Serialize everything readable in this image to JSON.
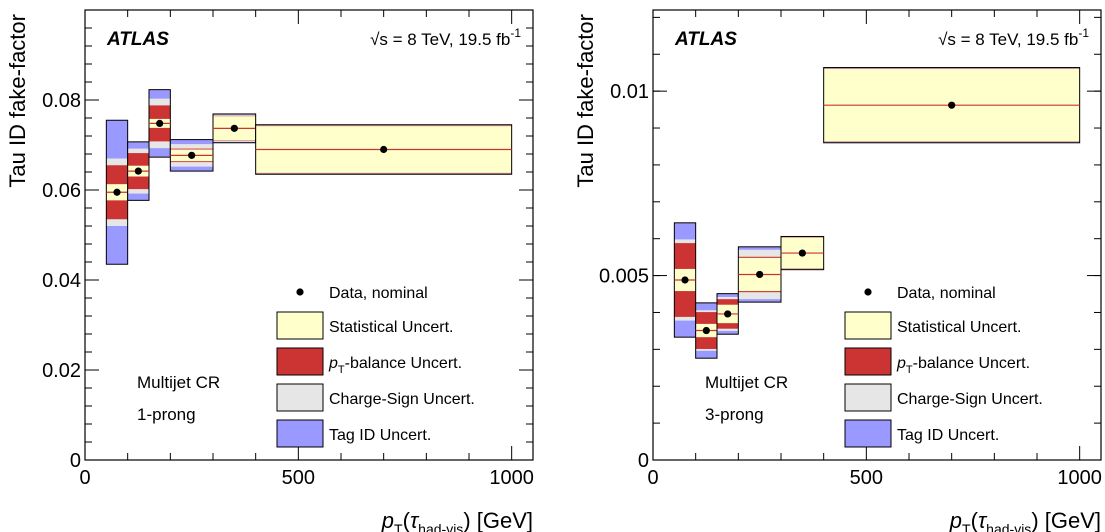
{
  "chart_data": [
    {
      "type": "bar",
      "panel": "left",
      "experiment": "ATLAS",
      "energy_label": "√s = 8 TeV, 19.5 fb",
      "lumi_exponent": "-1",
      "ylabel": "Tau ID fake-factor",
      "xlabel": {
        "p": "p",
        "sub": "T",
        "paren_open": "(",
        "tau": "τ",
        "tau_sub": "had-vis",
        "rest": ") [GeV]"
      },
      "xlim": [
        0,
        1050
      ],
      "ylim": [
        0,
        0.1
      ],
      "xticks": [
        0,
        500,
        1000
      ],
      "xtick_labels": [
        "0",
        "500",
        "1000"
      ],
      "yticks": [
        0,
        0.02,
        0.04,
        0.06,
        0.08
      ],
      "ytick_labels": [
        "0",
        "0.02",
        "0.04",
        "0.06",
        "0.08"
      ],
      "region_lines": [
        "Multijet CR",
        "1-prong"
      ],
      "bins": [
        {
          "xlo": 50,
          "xhi": 100,
          "value": 0.0595,
          "stat": 0.0018,
          "pt_bal": 0.006,
          "charge": 0.0075,
          "tag": 0.016
        },
        {
          "xlo": 100,
          "xhi": 150,
          "value": 0.0642,
          "stat": 0.0012,
          "pt_bal": 0.004,
          "charge": 0.005,
          "tag": 0.0065
        },
        {
          "xlo": 150,
          "xhi": 200,
          "value": 0.0748,
          "stat": 0.001,
          "pt_bal": 0.004,
          "charge": 0.0055,
          "tag": 0.0075
        },
        {
          "xlo": 200,
          "xhi": 300,
          "value": 0.0677,
          "stat": 0.0013,
          "pt_bal": 0.0015,
          "charge": 0.0025,
          "tag": 0.0035
        },
        {
          "xlo": 300,
          "xhi": 400,
          "value": 0.0737,
          "stat": 0.0027,
          "pt_bal": 0.0028,
          "charge": 0.003,
          "tag": 0.0032
        },
        {
          "xlo": 400,
          "xhi": 1000,
          "value": 0.069,
          "stat": 0.0052,
          "pt_bal": 0.0053,
          "charge": 0.0054,
          "tag": 0.0055
        }
      ],
      "legend": {
        "position": "bottom-right",
        "data_label": "Data, nominal",
        "entries": [
          {
            "key": "stat",
            "label": "Statistical Uncert.",
            "color": "#ffffcc"
          },
          {
            "key": "pt_bal",
            "label_sub_p": "p",
            "label_sub": "T",
            "label_rest": "-balance Uncert.",
            "color": "#cc3333"
          },
          {
            "key": "charge",
            "label": "Charge-Sign Uncert.",
            "color": "#e6e6e6"
          },
          {
            "key": "tag",
            "label": "Tag ID Uncert.",
            "color": "#9999ff"
          }
        ]
      }
    },
    {
      "type": "bar",
      "panel": "right",
      "experiment": "ATLAS",
      "energy_label": "√s = 8 TeV, 19.5 fb",
      "lumi_exponent": "-1",
      "ylabel": "Tau ID fake-factor",
      "xlabel": {
        "p": "p",
        "sub": "T",
        "paren_open": "(",
        "tau": "τ",
        "tau_sub": "had-vis",
        "rest": ") [GeV]"
      },
      "xlim": [
        0,
        1050
      ],
      "ylim": [
        0,
        0.0122
      ],
      "xticks": [
        0,
        500,
        1000
      ],
      "xtick_labels": [
        "0",
        "500",
        "1000"
      ],
      "yticks": [
        0,
        0.005,
        0.01
      ],
      "ytick_labels": [
        "0",
        "0.005",
        "0.01"
      ],
      "region_lines": [
        "Multijet CR",
        "3-prong"
      ],
      "bins": [
        {
          "xlo": 50,
          "xhi": 100,
          "value": 0.00488,
          "stat": 0.0003,
          "pt_bal": 0.001,
          "charge": 0.0011,
          "tag": 0.00155
        },
        {
          "xlo": 100,
          "xhi": 150,
          "value": 0.00351,
          "stat": 0.00018,
          "pt_bal": 0.0005,
          "charge": 0.00055,
          "tag": 0.00075
        },
        {
          "xlo": 150,
          "xhi": 200,
          "value": 0.00396,
          "stat": 0.00025,
          "pt_bal": 0.0004,
          "charge": 0.00046,
          "tag": 0.00055
        },
        {
          "xlo": 200,
          "xhi": 300,
          "value": 0.00503,
          "stat": 0.00045,
          "pt_bal": 0.00048,
          "charge": 0.00067,
          "tag": 0.00075
        },
        {
          "xlo": 300,
          "xhi": 400,
          "value": 0.00561,
          "stat": 0.00042,
          "pt_bal": 0.00043,
          "charge": 0.00044,
          "tag": 0.00045
        },
        {
          "xlo": 400,
          "xhi": 1000,
          "value": 0.00962,
          "stat": 0.00098,
          "pt_bal": 0.00099,
          "charge": 0.001,
          "tag": 0.00102
        }
      ],
      "legend": {
        "position": "bottom-right",
        "data_label": "Data, nominal",
        "entries": [
          {
            "key": "stat",
            "label": "Statistical Uncert.",
            "color": "#ffffcc"
          },
          {
            "key": "pt_bal",
            "label_sub_p": "p",
            "label_sub": "T",
            "label_rest": "-balance Uncert.",
            "color": "#cc3333"
          },
          {
            "key": "charge",
            "label": "Charge-Sign Uncert.",
            "color": "#e6e6e6"
          },
          {
            "key": "tag",
            "label": "Tag ID Uncert.",
            "color": "#9999ff"
          }
        ]
      }
    }
  ]
}
